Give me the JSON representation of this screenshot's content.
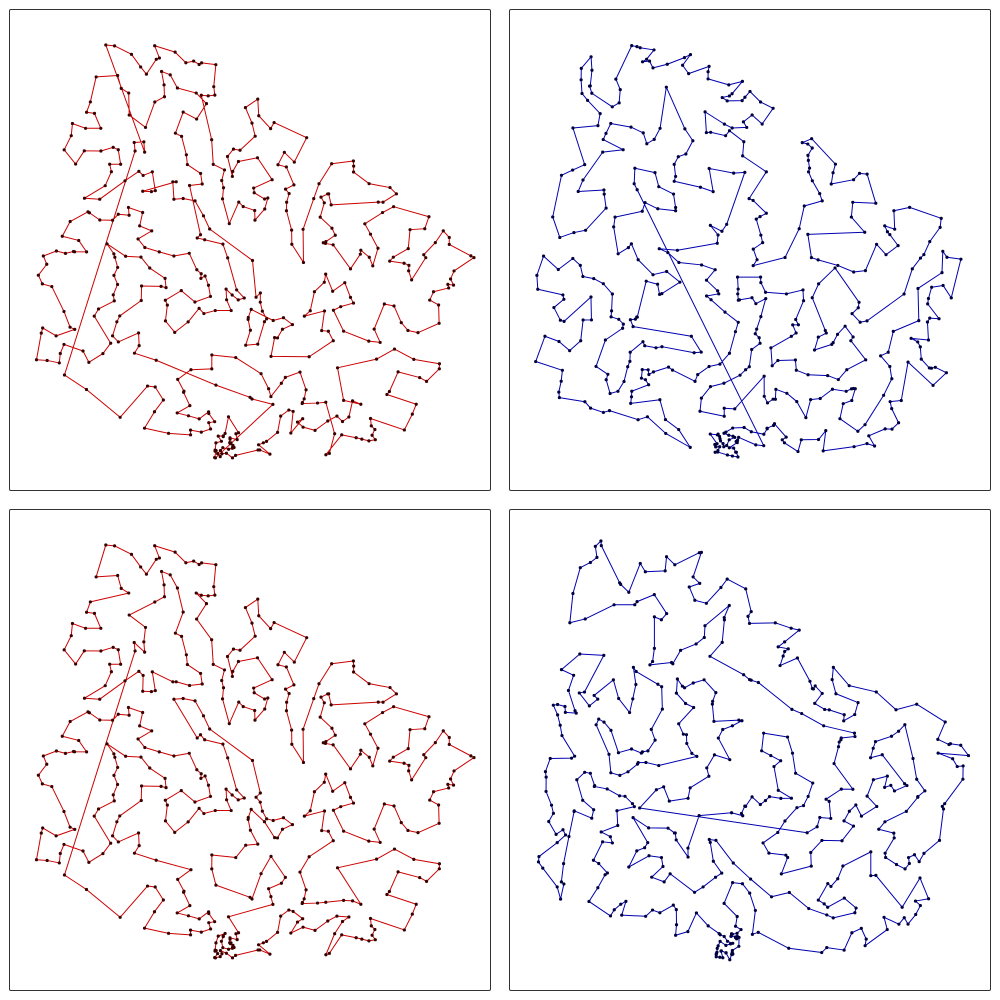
{
  "figure": {
    "description_free": true,
    "panels": [
      {
        "id": "p-tl",
        "variant": "top-left",
        "line_color": "#cc0000",
        "node_color": "#3a0000",
        "seed": 11,
        "shortcuts": true
      },
      {
        "id": "p-tr",
        "variant": "top-right",
        "line_color": "#0000b0",
        "node_color": "#000040",
        "seed": 23,
        "shortcuts": false
      },
      {
        "id": "p-bl",
        "variant": "bottom-left",
        "line_color": "#cc0000",
        "node_color": "#3a0000",
        "seed": 11,
        "shortcuts": false
      },
      {
        "id": "p-br",
        "variant": "bottom-right",
        "line_color": "#0000b0",
        "node_color": "#000040",
        "seed": 37,
        "shortcuts": false
      }
    ]
  }
}
